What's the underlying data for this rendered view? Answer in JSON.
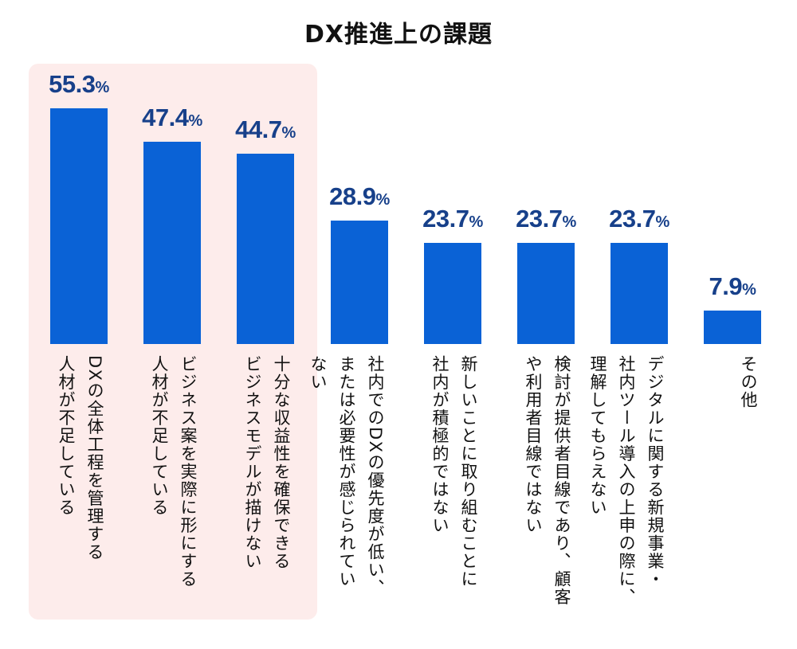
{
  "chart_data": {
    "type": "bar",
    "title": "DX推進上の課題",
    "categories": [
      [
        "DXの全体工程を管理する",
        "人材が不足している"
      ],
      [
        "ビジネス案を実際に形にする",
        "人材が不足している"
      ],
      [
        "十分な収益性を確保できる",
        "ビジネスモデルが描けない"
      ],
      [
        "社内でのDXの優先度が低い、",
        "または必要性が感じられてい",
        "ない"
      ],
      [
        "新しいことに取り組むことに",
        "社内が積極的ではない"
      ],
      [
        "検討が提供者目線であり、顧客",
        "や利用者目線ではない"
      ],
      [
        "デジタルに関する新規事業・",
        "社内ツール導入の上申の際に、",
        "理解してもらえない"
      ],
      [
        "その他"
      ]
    ],
    "values": [
      55.3,
      47.4,
      44.7,
      28.9,
      23.7,
      23.7,
      23.7,
      7.9
    ],
    "unit": "%",
    "highlighted": [
      0,
      1,
      2
    ],
    "colors": {
      "bar": "#0a62d6",
      "value_label": "#17408a",
      "highlight_bg": "#fdeceb"
    },
    "grid": false
  }
}
